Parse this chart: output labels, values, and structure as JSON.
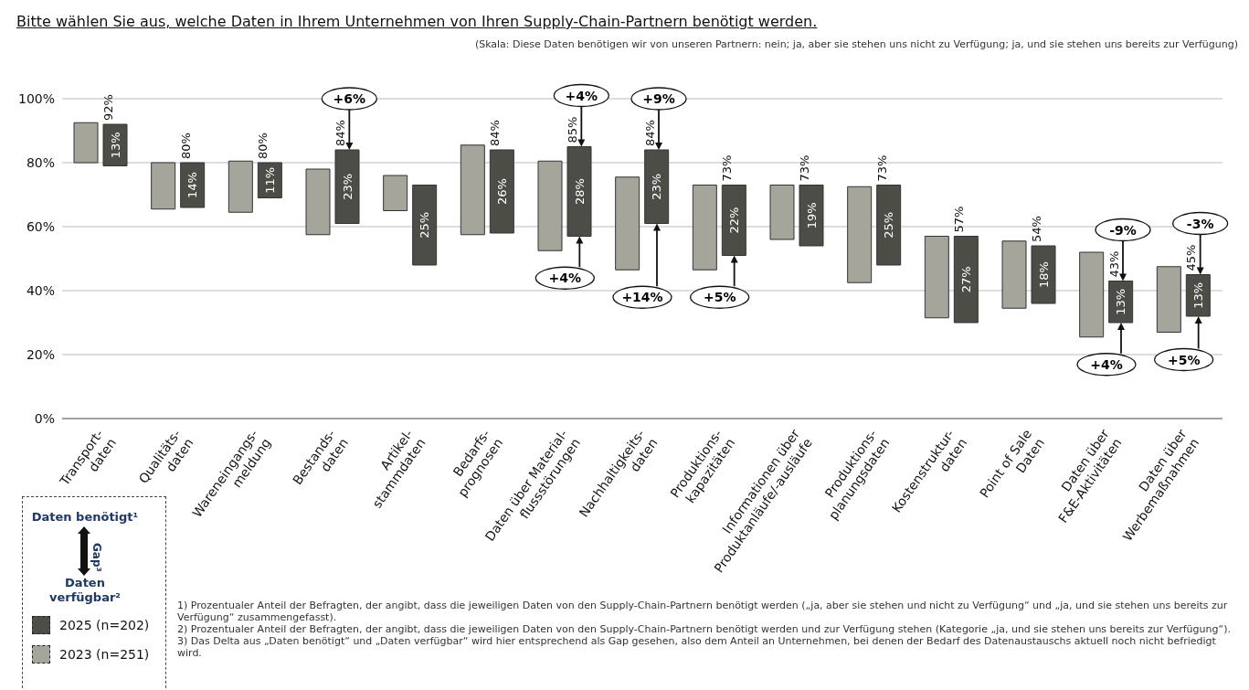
{
  "chart_data": {
    "type": "bar",
    "title": "Bitte wählen Sie aus, welche Daten in Ihrem Unternehmen von Ihren Supply-Chain-Partnern benötigt werden.",
    "subtitle": "(Skala: Diese Daten benötigen wir von unseren Partnern: nein; ja, aber sie stehen uns nicht zu Verfügung; ja, und sie stehen uns bereits zur Verfügung)",
    "categories": [
      "Transport-\ndaten",
      "Qualitäts-\ndaten",
      "Wareneingangs-\nmeldung",
      "Bestands-\ndaten",
      "Artikel-\nstammdaten",
      "Bedarfs-\nprognosen",
      "Daten über Material-\nflussstörungen",
      "Nachhaltigkeits-\ndaten",
      "Produktions-\nkapazitäten",
      "Informationen über\nProduktanläufe/-ausläufe",
      "Produktions-\nplanungsdaten",
      "Kostenstruktur-\ndaten",
      "Point of Sale\nDaten",
      "Daten über\nF&E-Aktivitäten",
      "Daten über\nWerbemaßnahmen"
    ],
    "series": [
      {
        "name": "2023 (n=251)",
        "color": "#a5a59c",
        "base": [
          80,
          65.5,
          64.5,
          57.5,
          65,
          57.5,
          52.5,
          46.5,
          46.5,
          56,
          42.5,
          31.5,
          34.5,
          25.5,
          27
        ],
        "values": [
          12.5,
          14.5,
          16,
          20.5,
          11,
          28,
          28,
          29,
          26.5,
          17,
          30,
          25.5,
          21,
          26.5,
          20.5
        ]
      },
      {
        "name": "2025 (n=202)",
        "color": "#4d4d47",
        "base": [
          79,
          66,
          69,
          61,
          48,
          58,
          57,
          61,
          51,
          54,
          48,
          30,
          36,
          30,
          32
        ],
        "values": [
          13,
          14,
          11,
          23,
          25,
          26,
          28,
          23,
          22,
          19,
          25,
          27,
          18,
          13,
          13
        ],
        "value_labels": [
          "13%",
          "14%",
          "11%",
          "23%",
          "25%",
          "26%",
          "28%",
          "23%",
          "22%",
          "19%",
          "25%",
          "27%",
          "18%",
          "13%",
          "13%"
        ]
      }
    ],
    "ylim": [
      0,
      100
    ],
    "yticks": [
      {
        "value": 0,
        "label": "0%"
      },
      {
        "value": 20,
        "label": "20%"
      },
      {
        "value": 40,
        "label": "40%"
      },
      {
        "value": 60,
        "label": "60%"
      },
      {
        "value": 80,
        "label": "80%"
      },
      {
        "value": 100,
        "label": "100%"
      }
    ],
    "grid": "y",
    "legend": "bottom left",
    "annotations": [
      "Daten benötigt¹",
      "Gap³",
      "Daten verfügbar²",
      "1)  Prozentualer Anteil der Befragten, der angibt, dass die jeweiligen Daten von den Supply-Chain-Partnern benötigt werden („ja, aber sie stehen und nicht zu Verfügung“ und „ja, und sie stehen uns bereits zur Verfügung“ zusammengefasst).",
      "2)  Prozentualer Anteil der Befragten, der angibt, dass die jeweiligen Daten von den Supply-Chain-Partnern benötigt werden und zur Verfügung stehen (Kategorie „ja, und sie stehen uns bereits zur Verfügung“).",
      "3)  Das Delta aus „Daten benötigt“ und „Daten verfügbar“ wird hier entsprechend als Gap gesehen, also dem Anteil an Unternehmen, bei denen der Bedarf des Datenaustauschs aktuell noch nicht befriedigt wird.",
      {
        "text": "92%",
        "x": "Transport-\ndaten",
        "y": 92
      },
      {
        "text": "80%",
        "x": "Qualitäts-\ndaten",
        "y": 80
      },
      {
        "text": "80%",
        "x": "Wareneingangs-\nmeldung",
        "y": 80
      },
      {
        "text": "84%",
        "x": "Bestands-\ndaten",
        "y": 84
      },
      {
        "text": "84%",
        "x": "Bedarfs-\nprognosen",
        "y": 84
      },
      {
        "text": "85%",
        "x": "Daten über Material-\nflussstörungen",
        "y": 85
      },
      {
        "text": "84%",
        "x": "Nachhaltigkeits-\ndaten",
        "y": 84
      },
      {
        "text": "73%",
        "x": "Produktions-\nkapazitäten",
        "y": 73
      },
      {
        "text": "73%",
        "x": "Informationen über\nProduktanläufe/-ausläufe",
        "y": 73
      },
      {
        "text": "73%",
        "x": "Produktions-\nplanungsdaten",
        "y": 73
      },
      {
        "text": "57%",
        "x": "Kostenstruktur-\ndaten",
        "y": 57
      },
      {
        "text": "54%",
        "x": "Point of Sale\nDaten",
        "y": 54
      },
      {
        "text": "43%",
        "x": "Daten über\nF&E-Aktivitäten",
        "y": 43
      },
      {
        "text": "45%",
        "x": "Daten über\nWerbemaßnahmen",
        "y": 45
      },
      {
        "text": "+6%",
        "x": "Bestands-\ndaten",
        "y": 84
      },
      {
        "text": "+4%",
        "x": "Daten über Material-\nflussstörungen",
        "y": 85
      },
      {
        "text": "+9%",
        "x": "Nachhaltigkeits-\ndaten",
        "y": 84
      },
      {
        "text": "-9%",
        "x": "Daten über\nF&E-Aktivitäten",
        "y": 43
      },
      {
        "text": "-3%",
        "x": "Daten über\nWerbemaßnahmen",
        "y": 45
      },
      {
        "text": "+4%",
        "x": "Daten über Material-\nflussstörungen",
        "y": 57
      },
      {
        "text": "+14%",
        "x": "Nachhaltigkeits-\ndaten",
        "y": 61
      },
      {
        "text": "+5%",
        "x": "Produktions-\nkapazitäten",
        "y": 51
      },
      {
        "text": "+4%",
        "x": "Daten über\nF&E-Aktivitäten",
        "y": 30
      },
      {
        "text": "+5%",
        "x": "Daten über\nWerbemaßnahmen",
        "y": 32
      }
    ]
  }
}
